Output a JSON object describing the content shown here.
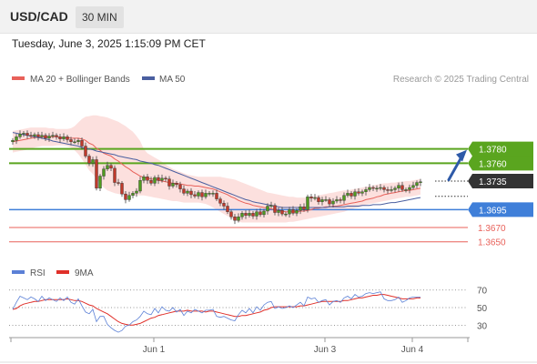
{
  "header": {
    "symbol": "USD/CAD",
    "timeframe": "30 MIN",
    "datetime": "Tuesday, June 3, 2025 1:15:09 PM CET"
  },
  "colors": {
    "ma20": "#e8615a",
    "bollinger_band": "#fbd5d3",
    "ma50": "#4a5fa0",
    "resistance": "#5aa51f",
    "support": "#3f7fd9",
    "target": "#e8615a",
    "current": "#333333",
    "candle_up": "#4f9a1f",
    "candle_down": "#c0392b",
    "rsi": "#5b80d6",
    "rsi_ma": "#e0302a",
    "arrow": "#2e5aa8"
  },
  "legend": {
    "ma": "MA 20 + Bollinger Bands",
    "ma50": "MA 50",
    "credit": "Research © 2025 Trading Central"
  },
  "rsi_legend": {
    "rsi": "RSI",
    "ma": "9MA"
  },
  "chart_data": [
    {
      "type": "candlestick",
      "ylim": [
        1.3628,
        1.3842
      ],
      "x_ticks": [
        {
          "label": "Jun 1",
          "index": 35
        },
        {
          "label": "Jun 3",
          "index": 82
        },
        {
          "label": "Jun 4",
          "index": 106
        }
      ],
      "levels": [
        {
          "value": 1.378,
          "label": "1.3780",
          "kind": "resistance"
        },
        {
          "value": 1.376,
          "label": "1.3760",
          "kind": "resistance"
        },
        {
          "value": 1.3735,
          "label": "1.3735",
          "kind": "current"
        },
        {
          "value": 1.3695,
          "label": "1.3695",
          "kind": "support"
        },
        {
          "value": 1.367,
          "label": "1.3670",
          "kind": "target"
        },
        {
          "value": 1.365,
          "label": "1.3650",
          "kind": "target"
        }
      ],
      "close": [
        1.3792,
        1.3797,
        1.3801,
        1.3802,
        1.3799,
        1.3798,
        1.38,
        1.3797,
        1.3799,
        1.3795,
        1.3798,
        1.3799,
        1.3797,
        1.3794,
        1.3797,
        1.3793,
        1.379,
        1.379,
        1.3792,
        1.3784,
        1.377,
        1.376,
        1.3765,
        1.3725,
        1.3742,
        1.3752,
        1.3757,
        1.3753,
        1.3733,
        1.3732,
        1.3717,
        1.3709,
        1.3715,
        1.3718,
        1.3721,
        1.3736,
        1.3741,
        1.3736,
        1.3732,
        1.374,
        1.3736,
        1.3739,
        1.3738,
        1.3728,
        1.3732,
        1.373,
        1.3724,
        1.3718,
        1.3721,
        1.3716,
        1.3714,
        1.3719,
        1.3713,
        1.3718,
        1.3718,
        1.3718,
        1.371,
        1.3704,
        1.37,
        1.3692,
        1.3685,
        1.368,
        1.3685,
        1.369,
        1.3687,
        1.369,
        1.3686,
        1.3692,
        1.3688,
        1.3693,
        1.37,
        1.3701,
        1.3691,
        1.3694,
        1.3689,
        1.3689,
        1.3695,
        1.369,
        1.3694,
        1.3699,
        1.3695,
        1.3713,
        1.3711,
        1.3712,
        1.3706,
        1.3709,
        1.3709,
        1.3703,
        1.3707,
        1.3709,
        1.3708,
        1.3715,
        1.3718,
        1.3714,
        1.372,
        1.3718,
        1.372,
        1.3723,
        1.3726,
        1.3725,
        1.3725,
        1.3726,
        1.3723,
        1.3722,
        1.3723,
        1.3725,
        1.3729,
        1.3723,
        1.3723,
        1.3726,
        1.3729,
        1.3733,
        1.3734
      ],
      "ma20": [
        1.379,
        1.3791,
        1.3792,
        1.3793,
        1.3794,
        1.3795,
        1.3796,
        1.3796,
        1.3797,
        1.3797,
        1.3797,
        1.3797,
        1.3797,
        1.3796,
        1.3796,
        1.3796,
        1.3795,
        1.3795,
        1.3795,
        1.3794,
        1.3792,
        1.3788,
        1.3786,
        1.3781,
        1.3778,
        1.3774,
        1.3772,
        1.377,
        1.3766,
        1.3763,
        1.3759,
        1.3755,
        1.3752,
        1.3748,
        1.3745,
        1.3742,
        1.374,
        1.3739,
        1.3738,
        1.3737,
        1.3736,
        1.3735,
        1.3734,
        1.3733,
        1.3732,
        1.3732,
        1.3731,
        1.373,
        1.3729,
        1.3729,
        1.3728,
        1.3728,
        1.3727,
        1.3726,
        1.3725,
        1.3724,
        1.3722,
        1.372,
        1.3718,
        1.3716,
        1.3713,
        1.3711,
        1.3708,
        1.3706,
        1.3704,
        1.3703,
        1.3701,
        1.37,
        1.3699,
        1.3698,
        1.3697,
        1.3696,
        1.3695,
        1.3694,
        1.3693,
        1.3692,
        1.3692,
        1.3692,
        1.3692,
        1.3693,
        1.3693,
        1.3694,
        1.3695,
        1.3697,
        1.3697,
        1.3698,
        1.3699,
        1.3699,
        1.37,
        1.37,
        1.3701,
        1.3702,
        1.3703,
        1.3704,
        1.3705,
        1.3706,
        1.3707,
        1.3709,
        1.371,
        1.3711,
        1.3713,
        1.3714,
        1.3716,
        1.3717,
        1.3718,
        1.3719,
        1.372,
        1.3721,
        1.3722,
        1.3722,
        1.3723,
        1.3724,
        1.3725
      ],
      "bb_upper": [
        1.3805,
        1.3806,
        1.3807,
        1.3808,
        1.3809,
        1.381,
        1.381,
        1.381,
        1.381,
        1.381,
        1.3809,
        1.3809,
        1.3808,
        1.3808,
        1.3808,
        1.3808,
        1.3809,
        1.3812,
        1.3817,
        1.3822,
        1.3825,
        1.3826,
        1.3827,
        1.3827,
        1.3826,
        1.3825,
        1.3824,
        1.3822,
        1.382,
        1.3818,
        1.3815,
        1.3812,
        1.3808,
        1.3804,
        1.3798,
        1.3791,
        1.378,
        1.3774,
        1.3771,
        1.3768,
        1.3765,
        1.3762,
        1.3758,
        1.3755,
        1.3752,
        1.375,
        1.3748,
        1.3746,
        1.3744,
        1.3743,
        1.3742,
        1.3741,
        1.3741,
        1.3741,
        1.3741,
        1.3741,
        1.3741,
        1.3741,
        1.374,
        1.3739,
        1.3738,
        1.3737,
        1.3735,
        1.3733,
        1.3731,
        1.3729,
        1.3727,
        1.3725,
        1.3723,
        1.3721,
        1.3719,
        1.3718,
        1.3717,
        1.3716,
        1.3715,
        1.3714,
        1.3713,
        1.3713,
        1.3712,
        1.3712,
        1.3712,
        1.3712,
        1.3713,
        1.3714,
        1.3715,
        1.3716,
        1.3717,
        1.3718,
        1.3719,
        1.372,
        1.3721,
        1.3722,
        1.3722,
        1.3723,
        1.3724,
        1.3725,
        1.3726,
        1.3727,
        1.3728,
        1.3729,
        1.373,
        1.3731,
        1.3732,
        1.3732,
        1.3733,
        1.3733,
        1.3734,
        1.3734,
        1.3735,
        1.3735,
        1.3736,
        1.3737,
        1.3738
      ],
      "bb_lower": [
        1.3775,
        1.3776,
        1.3777,
        1.3778,
        1.3779,
        1.378,
        1.3782,
        1.3783,
        1.3784,
        1.3784,
        1.3784,
        1.3784,
        1.3785,
        1.3785,
        1.3785,
        1.3784,
        1.3782,
        1.3778,
        1.3773,
        1.3766,
        1.3758,
        1.375,
        1.3745,
        1.3738,
        1.3732,
        1.3726,
        1.3722,
        1.372,
        1.3718,
        1.3717,
        1.3716,
        1.3715,
        1.3715,
        1.3715,
        1.3715,
        1.3715,
        1.3715,
        1.3714,
        1.3713,
        1.3712,
        1.3711,
        1.371,
        1.3709,
        1.3708,
        1.3707,
        1.3707,
        1.3706,
        1.3705,
        1.3705,
        1.3705,
        1.3705,
        1.3705,
        1.3704,
        1.3703,
        1.3701,
        1.3698,
        1.3695,
        1.3692,
        1.3689,
        1.3686,
        1.3683,
        1.368,
        1.3678,
        1.3677,
        1.3677,
        1.3677,
        1.3677,
        1.3677,
        1.3677,
        1.3677,
        1.3677,
        1.3677,
        1.3677,
        1.3677,
        1.3677,
        1.3677,
        1.3678,
        1.3678,
        1.3679,
        1.368,
        1.3681,
        1.3682,
        1.3683,
        1.3684,
        1.3685,
        1.3686,
        1.3687,
        1.3688,
        1.3689,
        1.369,
        1.3691,
        1.3692,
        1.3694,
        1.3695,
        1.3697,
        1.3698,
        1.37,
        1.3702,
        1.3703,
        1.3704,
        1.3705,
        1.3706,
        1.3707,
        1.3708,
        1.3709,
        1.371,
        1.3711,
        1.3712,
        1.3713,
        1.3713,
        1.3714,
        1.3715,
        1.3716
      ],
      "ma50": [
        1.3803,
        1.3802,
        1.3801,
        1.38,
        1.3799,
        1.3798,
        1.3797,
        1.3796,
        1.3795,
        1.3794,
        1.3793,
        1.3791,
        1.379,
        1.3789,
        1.3788,
        1.3787,
        1.3786,
        1.3785,
        1.3784,
        1.3782,
        1.3781,
        1.378,
        1.3779,
        1.3777,
        1.3776,
        1.3775,
        1.3774,
        1.3773,
        1.3772,
        1.377,
        1.3769,
        1.3768,
        1.3767,
        1.3766,
        1.3765,
        1.3763,
        1.3762,
        1.3761,
        1.376,
        1.3758,
        1.3757,
        1.3755,
        1.3753,
        1.3751,
        1.3749,
        1.3747,
        1.3745,
        1.3743,
        1.3741,
        1.3739,
        1.3737,
        1.3735,
        1.3733,
        1.3731,
        1.3729,
        1.3727,
        1.3725,
        1.3723,
        1.3721,
        1.3719,
        1.3717,
        1.3715,
        1.3713,
        1.3711,
        1.3709,
        1.3708,
        1.3706,
        1.3705,
        1.3704,
        1.3703,
        1.3702,
        1.3701,
        1.37,
        1.3699,
        1.3698,
        1.3698,
        1.3698,
        1.3698,
        1.3698,
        1.3698,
        1.3698,
        1.3698,
        1.3698,
        1.3698,
        1.3698,
        1.3698,
        1.3698,
        1.3699,
        1.3699,
        1.3699,
        1.3699,
        1.3699,
        1.37,
        1.37,
        1.37,
        1.37,
        1.3701,
        1.3701,
        1.3701,
        1.3702,
        1.3702,
        1.3702,
        1.3703,
        1.3704,
        1.3705,
        1.3705,
        1.3706,
        1.3707,
        1.3708,
        1.3709,
        1.371,
        1.3711,
        1.3712
      ],
      "forecast": {
        "from_index": 111,
        "from_value": 1.3738,
        "to_value": 1.378
      }
    },
    {
      "type": "line",
      "title": "RSI",
      "ylim": [
        20,
        78
      ],
      "y_ticks": [
        70,
        50,
        30
      ],
      "series": [
        {
          "name": "RSI",
          "values": [
            48,
            56,
            63,
            61,
            59,
            62,
            60,
            57,
            63,
            58,
            61,
            59,
            57,
            61,
            58,
            62,
            56,
            54,
            60,
            52,
            45,
            43,
            48,
            34,
            40,
            40,
            31,
            27,
            24,
            22,
            24,
            29,
            30,
            34,
            36,
            40,
            46,
            43,
            42,
            49,
            44,
            51,
            47,
            46,
            50,
            45,
            48,
            41,
            46,
            44,
            48,
            46,
            44,
            47,
            47,
            48,
            40,
            39,
            40,
            38,
            36,
            35,
            42,
            47,
            44,
            49,
            44,
            51,
            47,
            53,
            56,
            57,
            49,
            51,
            49,
            50,
            52,
            50,
            53,
            56,
            52,
            62,
            60,
            61,
            56,
            58,
            59,
            53,
            57,
            58,
            56,
            61,
            63,
            60,
            65,
            62,
            63,
            66,
            67,
            66,
            67,
            68,
            60,
            58,
            58,
            59,
            62,
            56,
            58,
            61,
            62,
            62,
            62
          ]
        },
        {
          "name": "9MA",
          "values": [
            48,
            49,
            52,
            54,
            55,
            56,
            57,
            57,
            58,
            59,
            59,
            59,
            59,
            59,
            59,
            60,
            59,
            58,
            58,
            57,
            55,
            53,
            52,
            49,
            47,
            45,
            43,
            40,
            37,
            34,
            32,
            31,
            30,
            30,
            31,
            32,
            34,
            36,
            38,
            39,
            41,
            42,
            43,
            44,
            45,
            46,
            46,
            46,
            47,
            46,
            46,
            46,
            46,
            45,
            46,
            46,
            45,
            44,
            43,
            42,
            41,
            40,
            40,
            41,
            41,
            42,
            43,
            44,
            45,
            47,
            48,
            50,
            51,
            51,
            51,
            51,
            51,
            51,
            51,
            52,
            52,
            53,
            54,
            55,
            56,
            57,
            57,
            57,
            57,
            57,
            57,
            58,
            58,
            59,
            60,
            61,
            61,
            62,
            63,
            64,
            64,
            65,
            65,
            64,
            63,
            62,
            61,
            60,
            60,
            60,
            60,
            61,
            61
          ]
        }
      ]
    }
  ]
}
